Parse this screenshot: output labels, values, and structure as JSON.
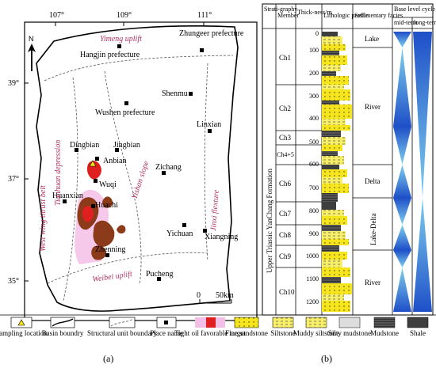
{
  "map": {
    "north_label": "N",
    "lon_ticks": [
      "107°",
      "109°",
      "111°"
    ],
    "lat_ticks": [
      "39°",
      "37°",
      "35°"
    ],
    "scale_labels": [
      "0",
      "50km"
    ],
    "places": [
      "Hangjin prefecture",
      "Zhungeer prefecture",
      "Shenmu",
      "Wushen prefecture",
      "Linxian",
      "Dingbian",
      "Jingbian",
      "Anbian",
      "Zichang",
      "Wuqi",
      "Huanxian",
      "Huachi",
      "Yichuan",
      "Xiangning",
      "Zhenning",
      "Pucheng"
    ],
    "units": [
      "Yimeng uplift",
      "West wing thrust belt",
      "Tianhuan depression",
      "Yishan slope",
      "Jinxi flexture",
      "Weibei uplift"
    ]
  },
  "column": {
    "headers": {
      "strat": "Strati-graphy",
      "member": "Member",
      "thickness": "Thick-ness/m",
      "litho": "Lithologic profile",
      "facies": "Sedimentary facies",
      "cycle": "Base level cycle",
      "mid": "mid-term",
      "long": "long-term"
    },
    "formation": "Upper Triassic YanChang Formation",
    "depth_ticks": [
      "0",
      "100",
      "200",
      "300",
      "400",
      "500",
      "600",
      "700",
      "800",
      "900",
      "1000",
      "1100",
      "1200"
    ],
    "members": [
      "Ch1",
      "Ch2",
      "Ch3",
      "Ch4+5",
      "Ch6",
      "Ch7",
      "Ch8",
      "Ch9",
      "Ch10"
    ],
    "facies": [
      "Lake",
      "River",
      "Delta",
      "Lake-Delta",
      "River"
    ]
  },
  "legend": {
    "items": [
      "Sampling location",
      "Basin boundry",
      "Structural unit boundary",
      "Place name",
      "Tight oil favorable target",
      "Fine sandstone",
      "Siltstone",
      "Muddy siltstone",
      "Silty mudstone",
      "Mudstone",
      "Shale"
    ]
  },
  "captions": {
    "a": "(a)",
    "b": "(b)"
  },
  "colors": {
    "oil_red": "#e02020",
    "oil_brown": "#8b3a1a",
    "sand_yellow": "#f5e51a",
    "cycle_blue": "#3a6fd8",
    "label_red": "#b03060"
  }
}
